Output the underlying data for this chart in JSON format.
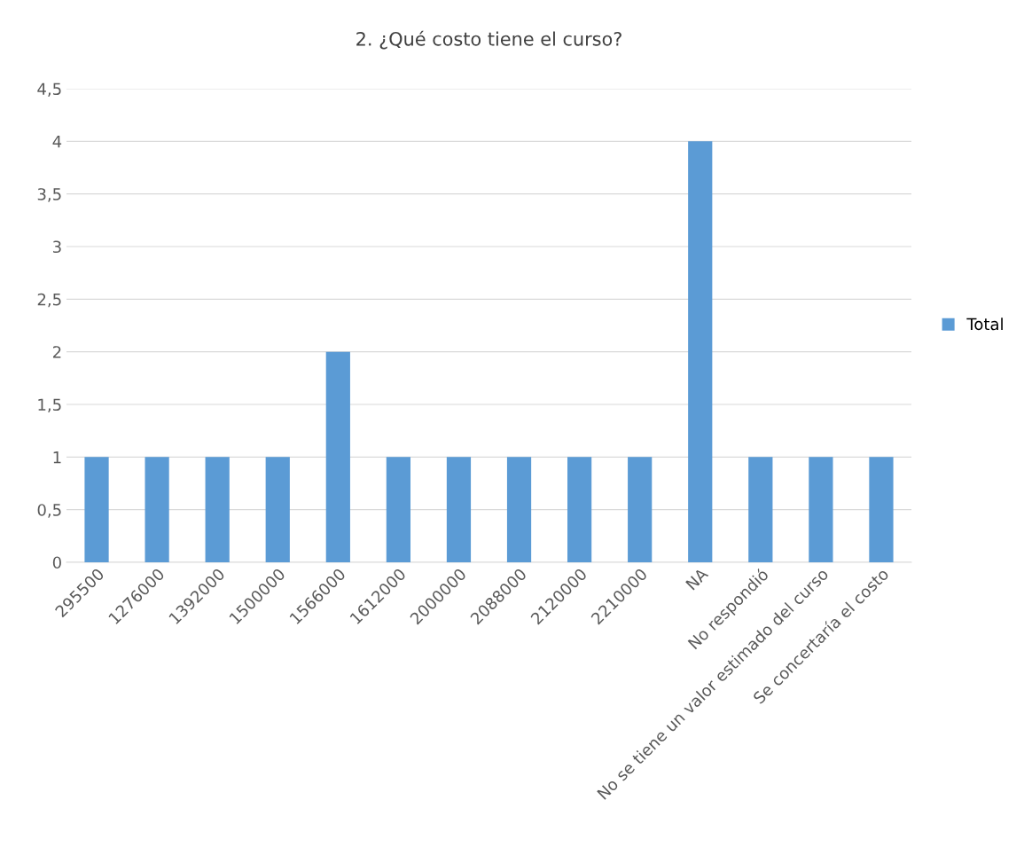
{
  "chart_data": {
    "type": "bar",
    "title": "2. ¿Qué costo tiene el curso?",
    "categories": [
      "295500",
      "1276000",
      "1392000",
      "1500000",
      "1566000",
      "1612000",
      "2000000",
      "2088000",
      "2120000",
      "2210000",
      "NA",
      "No respondió",
      "No se tiene un valor estimado del curso",
      "Se concertaría el costo"
    ],
    "series": [
      {
        "name": "Total",
        "color": "#5b9bd5",
        "values": [
          1,
          1,
          1,
          1,
          2,
          1,
          1,
          1,
          1,
          1,
          4,
          1,
          1,
          1
        ]
      }
    ],
    "ylim": [
      0,
      4.5
    ],
    "yticks": [
      0,
      {
        "value": 0.5,
        "label": "0,5"
      },
      1,
      {
        "value": 1.5,
        "label": "1,5"
      },
      2,
      {
        "value": 2.5,
        "label": "2,5"
      },
      3,
      {
        "value": 3.5,
        "label": "3,5"
      },
      4,
      {
        "value": 4.5,
        "label": "4,5"
      }
    ],
    "grid": "y",
    "legend": "right"
  }
}
